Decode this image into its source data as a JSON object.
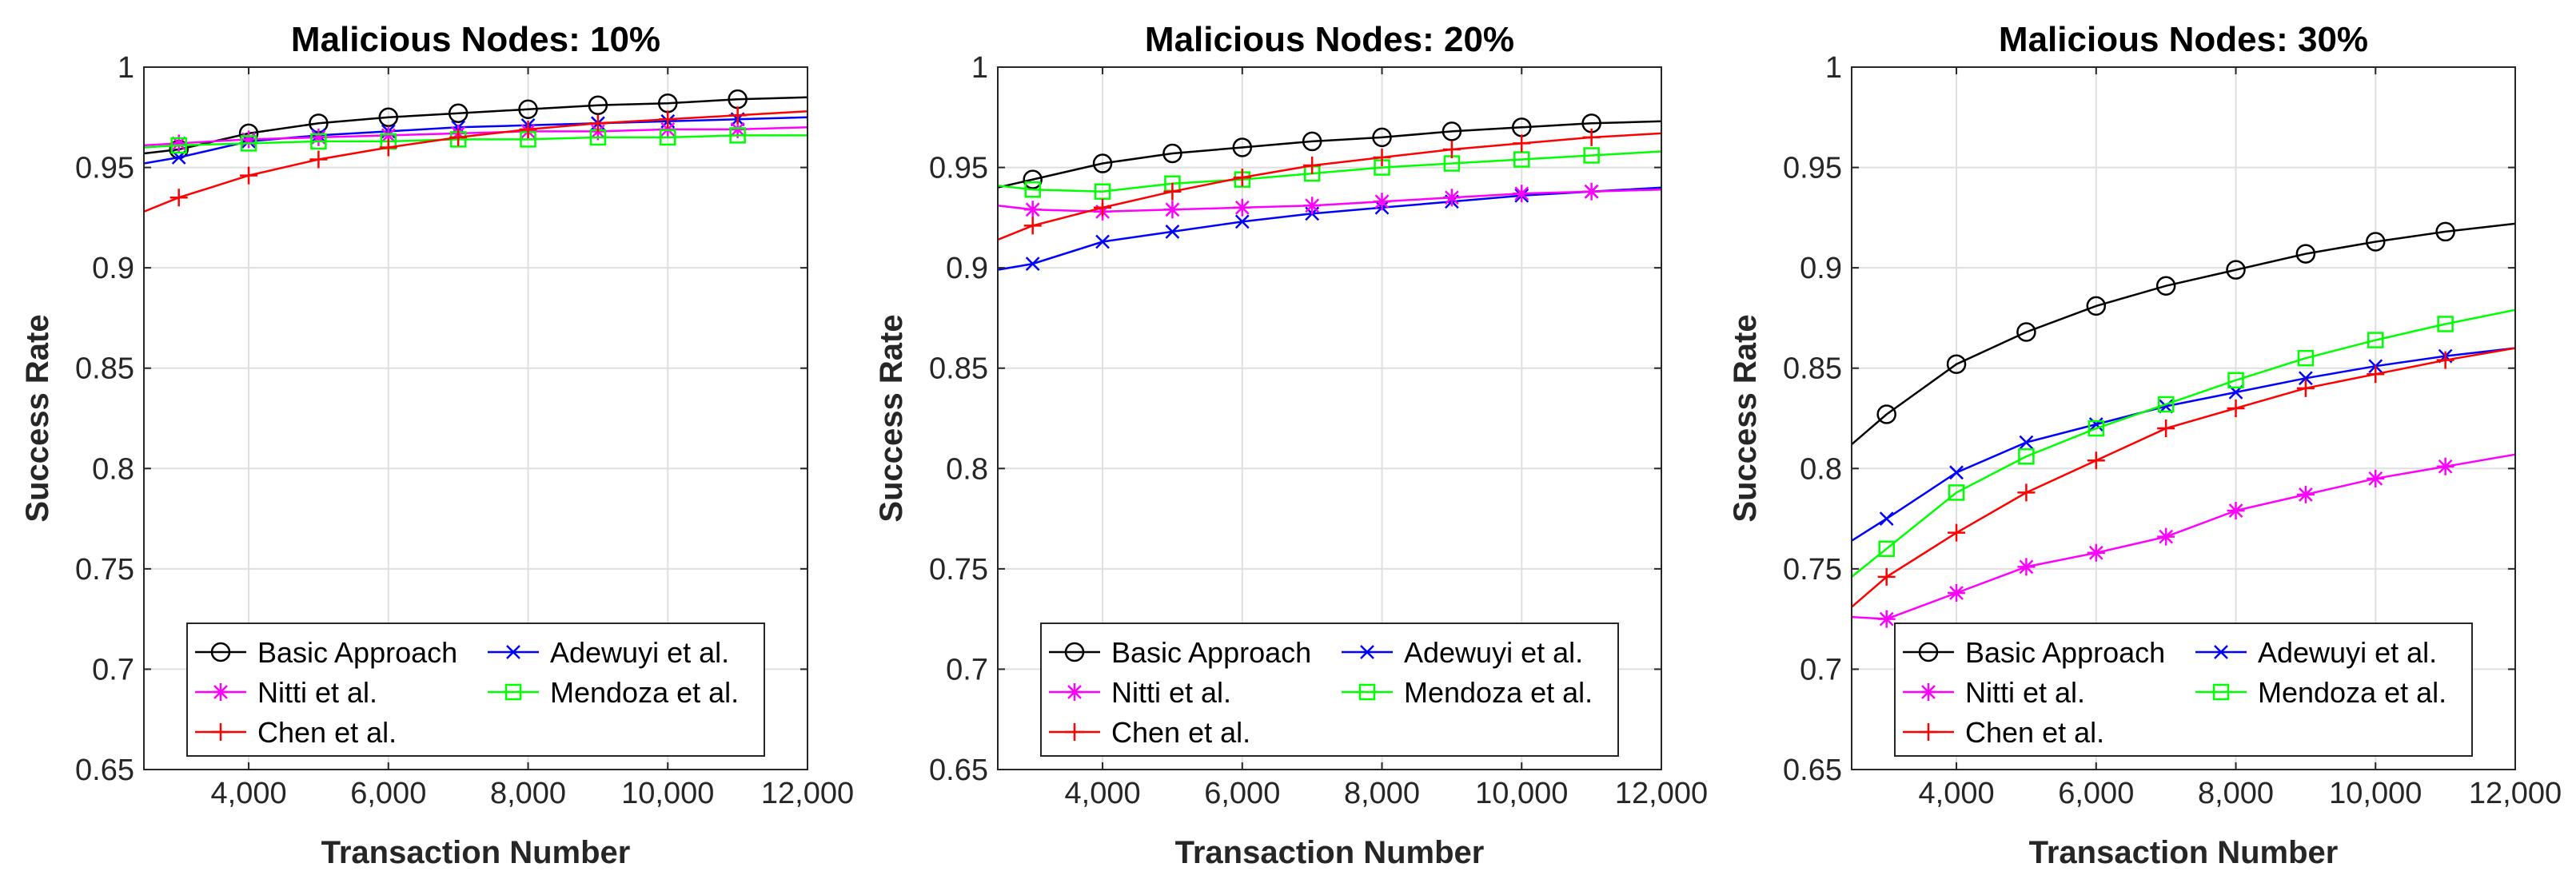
{
  "chart_data": [
    {
      "type": "line",
      "title": "Malicious Nodes: 10%",
      "xlabel": "Transaction Number",
      "ylabel": "Success Rate",
      "xlim": [
        2500,
        12000
      ],
      "ylim": [
        0.65,
        1
      ],
      "xticks": [
        4000,
        6000,
        8000,
        10000,
        12000
      ],
      "xtick_labels": [
        "4,000",
        "6,000",
        "8,000",
        "10,000",
        "12,000"
      ],
      "yticks": [
        0.65,
        0.7,
        0.75,
        0.8,
        0.85,
        0.9,
        0.95,
        1
      ],
      "ytick_labels": [
        "0.65",
        "0.7",
        "0.75",
        "0.8",
        "0.85",
        "0.9",
        "0.95",
        "1"
      ],
      "grid": true,
      "legend_position": "bottom-center",
      "x": [
        2500,
        3000,
        4000,
        5000,
        6000,
        7000,
        8000,
        9000,
        10000,
        11000,
        12000
      ],
      "series": [
        {
          "name": "Basic Approach",
          "color": "#000000",
          "marker": "circle",
          "values": [
            0.957,
            0.959,
            0.967,
            0.972,
            0.975,
            0.977,
            0.979,
            0.981,
            0.982,
            0.984,
            0.985
          ]
        },
        {
          "name": "Adewuyi et al.",
          "color": "#0000ff",
          "marker": "x",
          "values": [
            0.952,
            0.955,
            0.963,
            0.966,
            0.968,
            0.97,
            0.971,
            0.972,
            0.973,
            0.974,
            0.975
          ]
        },
        {
          "name": "Nitti et al.",
          "color": "#ff00ff",
          "marker": "star",
          "values": [
            0.961,
            0.962,
            0.964,
            0.965,
            0.966,
            0.967,
            0.968,
            0.968,
            0.969,
            0.969,
            0.97
          ]
        },
        {
          "name": "Mendoza et al.",
          "color": "#00ff00",
          "marker": "square",
          "values": [
            0.96,
            0.961,
            0.962,
            0.963,
            0.963,
            0.964,
            0.964,
            0.965,
            0.965,
            0.966,
            0.966
          ]
        },
        {
          "name": "Chen et al.",
          "color": "#ff0000",
          "marker": "plus",
          "values": [
            0.928,
            0.935,
            0.946,
            0.954,
            0.96,
            0.965,
            0.969,
            0.972,
            0.974,
            0.976,
            0.978
          ]
        }
      ]
    },
    {
      "type": "line",
      "title": "Malicious Nodes: 20%",
      "xlabel": "Transaction Number",
      "ylabel": "Success Rate",
      "xlim": [
        2500,
        12000
      ],
      "ylim": [
        0.65,
        1
      ],
      "xticks": [
        4000,
        6000,
        8000,
        10000,
        12000
      ],
      "xtick_labels": [
        "4,000",
        "6,000",
        "8,000",
        "10,000",
        "12,000"
      ],
      "yticks": [
        0.65,
        0.7,
        0.75,
        0.8,
        0.85,
        0.9,
        0.95,
        1
      ],
      "ytick_labels": [
        "0.65",
        "0.7",
        "0.75",
        "0.8",
        "0.85",
        "0.9",
        "0.95",
        "1"
      ],
      "grid": true,
      "legend_position": "bottom-center",
      "x": [
        2500,
        3000,
        4000,
        5000,
        6000,
        7000,
        8000,
        9000,
        10000,
        11000,
        12000
      ],
      "series": [
        {
          "name": "Basic Approach",
          "color": "#000000",
          "marker": "circle",
          "values": [
            0.94,
            0.944,
            0.952,
            0.957,
            0.96,
            0.963,
            0.965,
            0.968,
            0.97,
            0.972,
            0.973
          ]
        },
        {
          "name": "Adewuyi et al.",
          "color": "#0000ff",
          "marker": "x",
          "values": [
            0.899,
            0.902,
            0.913,
            0.918,
            0.923,
            0.927,
            0.93,
            0.933,
            0.936,
            0.938,
            0.94
          ]
        },
        {
          "name": "Nitti et al.",
          "color": "#ff00ff",
          "marker": "star",
          "values": [
            0.931,
            0.929,
            0.928,
            0.929,
            0.93,
            0.931,
            0.933,
            0.935,
            0.937,
            0.938,
            0.939
          ]
        },
        {
          "name": "Mendoza et al.",
          "color": "#00ff00",
          "marker": "square",
          "values": [
            0.941,
            0.939,
            0.938,
            0.942,
            0.944,
            0.947,
            0.95,
            0.952,
            0.954,
            0.956,
            0.958
          ]
        },
        {
          "name": "Chen et al.",
          "color": "#ff0000",
          "marker": "plus",
          "values": [
            0.914,
            0.921,
            0.93,
            0.938,
            0.945,
            0.951,
            0.955,
            0.959,
            0.962,
            0.965,
            0.967
          ]
        }
      ]
    },
    {
      "type": "line",
      "title": "Malicious Nodes: 30%",
      "xlabel": "Transaction Number",
      "ylabel": "Success Rate",
      "xlim": [
        2500,
        12000
      ],
      "ylim": [
        0.65,
        1
      ],
      "xticks": [
        4000,
        6000,
        8000,
        10000,
        12000
      ],
      "xtick_labels": [
        "4,000",
        "6,000",
        "8,000",
        "10,000",
        "12,000"
      ],
      "yticks": [
        0.65,
        0.7,
        0.75,
        0.8,
        0.85,
        0.9,
        0.95,
        1
      ],
      "ytick_labels": [
        "0.65",
        "0.7",
        "0.75",
        "0.8",
        "0.85",
        "0.9",
        "0.95",
        "1"
      ],
      "grid": true,
      "legend_position": "bottom-center",
      "x": [
        2500,
        3000,
        4000,
        5000,
        6000,
        7000,
        8000,
        9000,
        10000,
        11000,
        12000
      ],
      "series": [
        {
          "name": "Basic Approach",
          "color": "#000000",
          "marker": "circle",
          "values": [
            0.812,
            0.827,
            0.852,
            0.868,
            0.881,
            0.891,
            0.899,
            0.907,
            0.913,
            0.918,
            0.922
          ]
        },
        {
          "name": "Adewuyi et al.",
          "color": "#0000ff",
          "marker": "x",
          "values": [
            0.764,
            0.775,
            0.798,
            0.813,
            0.822,
            0.831,
            0.838,
            0.845,
            0.851,
            0.856,
            0.86
          ]
        },
        {
          "name": "Nitti et al.",
          "color": "#ff00ff",
          "marker": "star",
          "values": [
            0.726,
            0.725,
            0.738,
            0.751,
            0.758,
            0.766,
            0.779,
            0.787,
            0.795,
            0.801,
            0.807
          ]
        },
        {
          "name": "Mendoza et al.",
          "color": "#00ff00",
          "marker": "square",
          "values": [
            0.746,
            0.76,
            0.788,
            0.806,
            0.82,
            0.832,
            0.844,
            0.855,
            0.864,
            0.872,
            0.879
          ]
        },
        {
          "name": "Chen et al.",
          "color": "#ff0000",
          "marker": "plus",
          "values": [
            0.731,
            0.746,
            0.768,
            0.788,
            0.804,
            0.82,
            0.83,
            0.84,
            0.847,
            0.854,
            0.86
          ]
        }
      ]
    }
  ]
}
